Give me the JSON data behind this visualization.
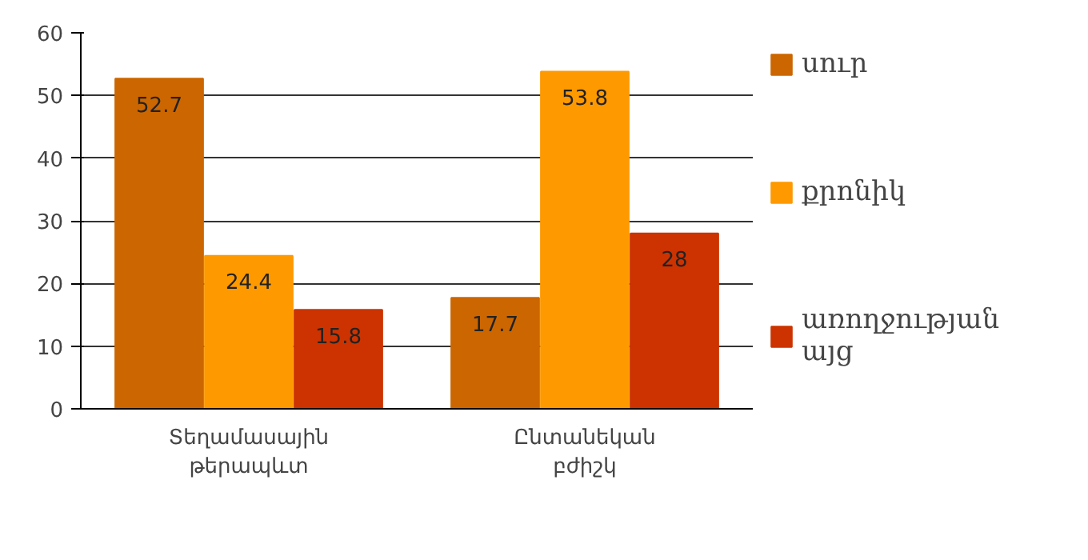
{
  "chart_data": {
    "type": "bar",
    "categories": [
      "Տեղամասային թերապևտ",
      "Ընտանեկան բժիշկ"
    ],
    "series": [
      {
        "name": "սուր",
        "color": "#cc6600",
        "values": [
          52.7,
          17.7
        ]
      },
      {
        "name": "քրոնիկ",
        "color": "#ff9900",
        "values": [
          24.4,
          53.8
        ]
      },
      {
        "name": "առողջության այց",
        "color": "#cc3300",
        "values": [
          15.8,
          28
        ]
      }
    ],
    "ylim": [
      0,
      60
    ],
    "yticks": [
      0,
      10,
      20,
      30,
      40,
      50,
      60
    ],
    "grid": "y",
    "legend": "right",
    "data_labels": true
  }
}
